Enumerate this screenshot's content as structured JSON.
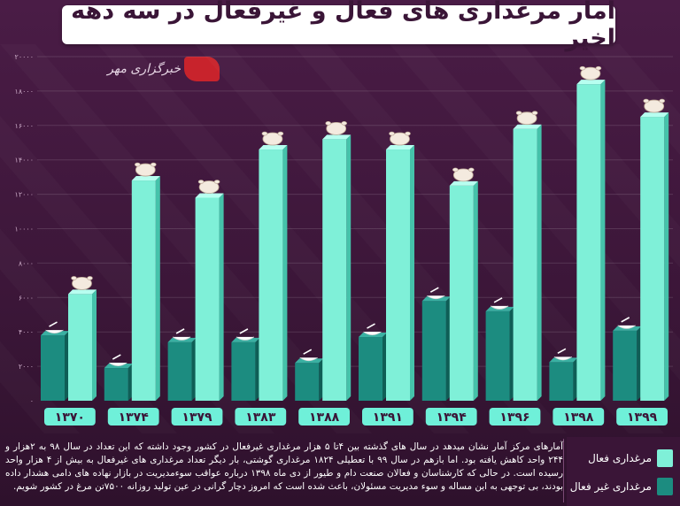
{
  "title": "آمار مرغداری های فعال و غیرفعال در سه دهه اخیر",
  "source_logo": "خبرگزاری مهر",
  "legend": {
    "active": "مرغداری فعال",
    "inactive": "مرغداری غیر فعال"
  },
  "colors": {
    "active": "#7ff0d8",
    "inactive": "#1c8c80",
    "background": "#3b1638",
    "year_badge": "#6ff0d9"
  },
  "description": "آمارهای مرکز آمار نشان میدهد در سال های گذشته بین ۴تا ۵ هزار مرغداری غیرفعال در کشور وجود داشته که این تعداد در سال ۹۸ به ۲هزار و ۲۴۴ واحد کاهش یافته بود. اما بازهم در سال ۹۹ با تعطیلی ۱۸۲۴ مرغداری گوشتی، بار دیگر تعداد مرغداری های غیرفعال به بیش از ۴ هزار واحد رسیده است. در حالی که کارشناسان و فعالان صنعت دام و طیور از دی ماه ۱۳۹۸ درباره عواقب سوءمدیریت در بازار نهاده های دامی هشدار داده بودند، بی توجهی به این مساله و سوء مدیریت مسئولان، باعث شده است که امروز دچار گرانی در عین تولید روزانه ۷۵۰۰تن مرغ در کشور شویم.",
  "chart_data": {
    "type": "bar",
    "categories": [
      "۱۳۷۰",
      "۱۳۷۴",
      "۱۳۷۹",
      "۱۳۸۳",
      "۱۳۸۸",
      "۱۳۹۱",
      "۱۳۹۴",
      "۱۳۹۶",
      "۱۳۹۸",
      "۱۳۹۹"
    ],
    "series": [
      {
        "name": "مرغداری غیر فعال",
        "values": [
          3800,
          1900,
          3400,
          3400,
          2200,
          3700,
          5800,
          5200,
          2244,
          4068
        ]
      },
      {
        "name": "مرغداری فعال",
        "values": [
          6200,
          12800,
          11800,
          14600,
          15200,
          14600,
          12500,
          15800,
          18400,
          16500
        ]
      }
    ],
    "ylim": [
      0,
      20000
    ],
    "yticks": [
      "۰",
      "۲۰۰۰",
      "۴۰۰۰",
      "۶۰۰۰",
      "۸۰۰۰",
      "۱۰۰۰۰",
      "۱۲۰۰۰",
      "۱۴۰۰۰",
      "۱۶۰۰۰",
      "۱۸۰۰۰",
      "۲۰۰۰۰"
    ],
    "grid": true
  }
}
